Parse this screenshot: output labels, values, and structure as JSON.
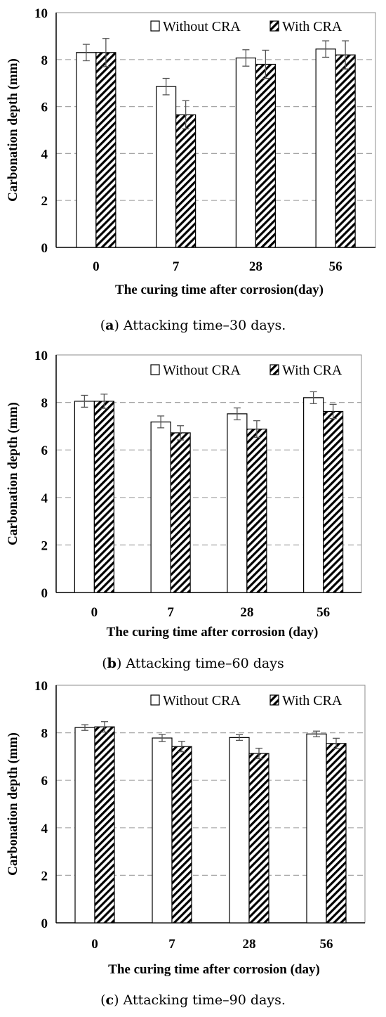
{
  "chart_data": [
    {
      "type": "bar",
      "ylabel": "Carbonation depth (mm)",
      "xlabel": "The curing time after corrosion(day)",
      "categories": [
        "0",
        "7",
        "28",
        "56"
      ],
      "ylim": [
        0,
        10
      ],
      "yticks": [
        0,
        2,
        4,
        6,
        8,
        10
      ],
      "grid": "horizontal dashed",
      "legend": "top-right",
      "series": [
        {
          "name": "Without CRA",
          "values": [
            8.3,
            6.85,
            8.07,
            8.45
          ],
          "errors": [
            0.35,
            0.35,
            0.35,
            0.35
          ]
        },
        {
          "name": "With CRA",
          "values": [
            8.3,
            5.65,
            7.8,
            8.2
          ],
          "errors": [
            0.6,
            0.6,
            0.6,
            0.6
          ]
        }
      ],
      "caption": {
        "letter": "a",
        "text": ") Attacking time–30 days.",
        "prefix": "("
      }
    },
    {
      "type": "bar",
      "ylabel": "Carbonation depth (mm)",
      "xlabel": "The curing time after corrosion (day)",
      "categories": [
        "0",
        "7",
        "28",
        "56"
      ],
      "ylim": [
        0,
        10
      ],
      "yticks": [
        0,
        2,
        4,
        6,
        8,
        10
      ],
      "grid": "horizontal dashed",
      "legend": "top-right",
      "series": [
        {
          "name": "Without CRA",
          "values": [
            8.05,
            7.18,
            7.52,
            8.2
          ],
          "errors": [
            0.25,
            0.25,
            0.25,
            0.25
          ]
        },
        {
          "name": "With CRA",
          "values": [
            8.05,
            6.72,
            6.88,
            7.62
          ],
          "errors": [
            0.3,
            0.3,
            0.35,
            0.3
          ]
        }
      ],
      "caption": {
        "letter": "b",
        "text": ") Attacking time–60 days",
        "prefix": "("
      }
    },
    {
      "type": "bar",
      "ylabel": "Carbonation depth (mm)",
      "xlabel": "The curing time after corrosion (day)",
      "categories": [
        "0",
        "7",
        "28",
        "56"
      ],
      "ylim": [
        0,
        10
      ],
      "yticks": [
        0,
        2,
        4,
        6,
        8,
        10
      ],
      "grid": "horizontal dashed",
      "legend": "top-right",
      "series": [
        {
          "name": "Without CRA",
          "values": [
            8.22,
            7.78,
            7.8,
            7.95
          ],
          "errors": [
            0.12,
            0.15,
            0.12,
            0.12
          ]
        },
        {
          "name": "With CRA",
          "values": [
            8.25,
            7.42,
            7.13,
            7.55
          ],
          "errors": [
            0.22,
            0.22,
            0.22,
            0.22
          ]
        }
      ],
      "caption": {
        "letter": "c",
        "text": ") Attacking time–90 days.",
        "prefix": "("
      }
    }
  ],
  "colors": {
    "bar_fill": "#ffffff",
    "bar_stroke": "#000000",
    "grid": "#a6a6a6",
    "frame": "#8c8c8c"
  }
}
